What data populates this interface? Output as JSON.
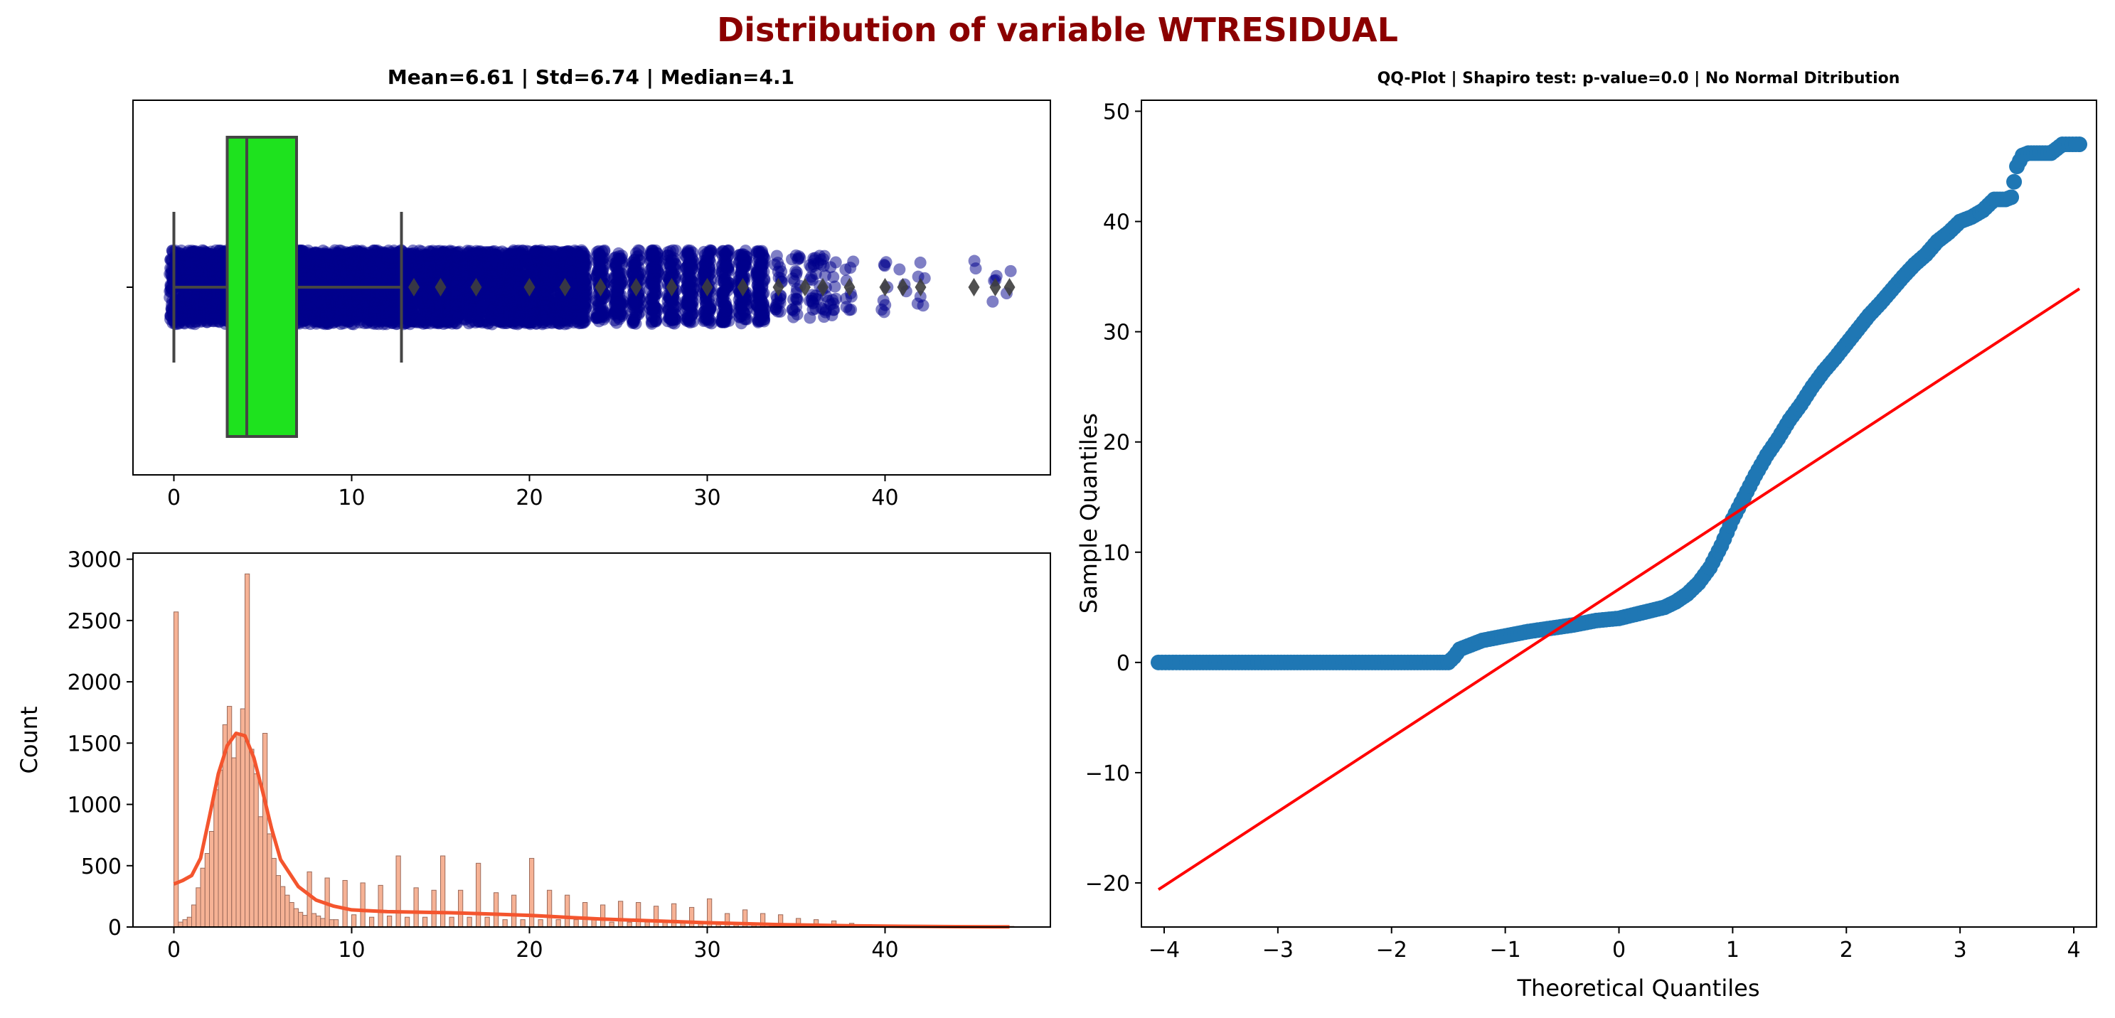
{
  "suptitle": "Distribution of variable WTRESIDUAL",
  "colors": {
    "suptitle": "#8b0000",
    "box_fill": "#1ee21e",
    "box_line": "#454545",
    "strip_points": "#00008b",
    "outliers": "#3d3d3d",
    "hist_fill": "#f4a582",
    "hist_edge": "#9b6a5a",
    "kde_line": "#f4552e",
    "qq_points": "#1f77b4",
    "qq_line": "#ff0000"
  },
  "boxplot": {
    "title": "Mean=6.61 | Std=6.74 | Median=4.1",
    "xlim": [
      -2.3,
      49.3
    ],
    "xticks": [
      0,
      10,
      20,
      30,
      40
    ],
    "stats": {
      "whisker_low": 0,
      "q1": 3.0,
      "median": 4.1,
      "q3": 6.9,
      "whisker_high": 12.8
    },
    "outliers": [
      13.5,
      15,
      17,
      20,
      22,
      24,
      26,
      28,
      30,
      32,
      34,
      35.5,
      36.5,
      38,
      40,
      41,
      42,
      45,
      46.2,
      47
    ],
    "strip_columns": [
      {
        "x": 0.0,
        "n": 100
      },
      {
        "x": 0.5,
        "n": 100
      },
      {
        "x": 1.0,
        "n": 100
      },
      {
        "x": 1.5,
        "n": 100
      },
      {
        "x": 2.0,
        "n": 100
      },
      {
        "x": 2.5,
        "n": 100
      },
      {
        "x": 3.0,
        "n": 100
      },
      {
        "x": 3.5,
        "n": 100
      },
      {
        "x": 4.0,
        "n": 100
      },
      {
        "x": 4.5,
        "n": 100
      },
      {
        "x": 5.0,
        "n": 100
      },
      {
        "x": 5.5,
        "n": 100
      },
      {
        "x": 6.0,
        "n": 100
      },
      {
        "x": 6.5,
        "n": 100
      },
      {
        "x": 7.0,
        "n": 100
      },
      {
        "x": 7.5,
        "n": 100
      },
      {
        "x": 8.0,
        "n": 100
      },
      {
        "x": 8.5,
        "n": 100
      },
      {
        "x": 9.0,
        "n": 100
      },
      {
        "x": 9.5,
        "n": 100
      },
      {
        "x": 10.0,
        "n": 100
      },
      {
        "x": 10.5,
        "n": 100
      },
      {
        "x": 11.0,
        "n": 100
      },
      {
        "x": 11.5,
        "n": 100
      },
      {
        "x": 12.0,
        "n": 100
      },
      {
        "x": 12.5,
        "n": 100
      },
      {
        "x": 13.0,
        "n": 100
      },
      {
        "x": 13.5,
        "n": 100
      },
      {
        "x": 14.0,
        "n": 100
      },
      {
        "x": 14.5,
        "n": 100
      },
      {
        "x": 15.0,
        "n": 100
      },
      {
        "x": 15.5,
        "n": 100
      },
      {
        "x": 16.0,
        "n": 100
      },
      {
        "x": 16.5,
        "n": 100
      },
      {
        "x": 17.0,
        "n": 100
      },
      {
        "x": 17.5,
        "n": 100
      },
      {
        "x": 18.0,
        "n": 100
      },
      {
        "x": 18.5,
        "n": 100
      },
      {
        "x": 19.0,
        "n": 100
      },
      {
        "x": 19.5,
        "n": 100
      },
      {
        "x": 20.0,
        "n": 100
      },
      {
        "x": 20.5,
        "n": 100
      },
      {
        "x": 21.0,
        "n": 100
      },
      {
        "x": 21.5,
        "n": 100
      },
      {
        "x": 22.0,
        "n": 100
      },
      {
        "x": 22.5,
        "n": 100
      },
      {
        "x": 23.0,
        "n": 100
      },
      {
        "x": 24.0,
        "n": 100
      },
      {
        "x": 25.0,
        "n": 100
      },
      {
        "x": 26.0,
        "n": 100
      },
      {
        "x": 27.0,
        "n": 100
      },
      {
        "x": 28.0,
        "n": 100
      },
      {
        "x": 29.0,
        "n": 100
      },
      {
        "x": 30.0,
        "n": 100
      },
      {
        "x": 31.0,
        "n": 100
      },
      {
        "x": 32.0,
        "n": 100
      },
      {
        "x": 33.0,
        "n": 100
      },
      {
        "x": 34.0,
        "n": 24
      },
      {
        "x": 35.0,
        "n": 24
      },
      {
        "x": 36.0,
        "n": 24
      },
      {
        "x": 36.5,
        "n": 16
      },
      {
        "x": 37.0,
        "n": 12
      },
      {
        "x": 38.0,
        "n": 10
      },
      {
        "x": 40.0,
        "n": 8
      },
      {
        "x": 41.0,
        "n": 3
      },
      {
        "x": 42.0,
        "n": 6
      },
      {
        "x": 45.0,
        "n": 2
      },
      {
        "x": 46.2,
        "n": 4
      },
      {
        "x": 47.0,
        "n": 2
      }
    ]
  },
  "histogram": {
    "ylabel": "Count",
    "xlim": [
      -2.3,
      49.3
    ],
    "ylim": [
      0,
      3050
    ],
    "xticks": [
      0,
      10,
      20,
      30,
      40
    ],
    "yticks": [
      0,
      500,
      1000,
      1500,
      2000,
      2500,
      3000
    ]
  },
  "qqplot": {
    "title": "QQ-Plot | Shapiro test: p-value=0.0 | No Normal Ditribution",
    "xlabel": "Theoretical Quantiles",
    "ylabel": "Sample Quantiles",
    "xlim": [
      -4.2,
      4.2
    ],
    "ylim": [
      -24,
      51
    ],
    "xticks": [
      -4,
      -3,
      -2,
      -1,
      0,
      1,
      2,
      3,
      4
    ],
    "xtick_labels": [
      "−4",
      "−3",
      "−2",
      "−1",
      "0",
      "1",
      "2",
      "3",
      "4"
    ],
    "yticks": [
      -20,
      -10,
      0,
      10,
      20,
      30,
      40,
      50
    ],
    "ytick_labels": [
      "−20",
      "−10",
      "0",
      "10",
      "20",
      "30",
      "40",
      "50"
    ],
    "reference_line": [
      [
        -4.05,
        -20.6
      ],
      [
        4.05,
        33.9
      ]
    ]
  },
  "chart_data": [
    {
      "type": "box",
      "title": "Mean=6.61 | Std=6.74 | Median=4.1",
      "stats": {
        "min": 0,
        "q1": 3.0,
        "median": 4.1,
        "q3": 6.9,
        "max_whisker": 12.8
      },
      "mean": 6.61,
      "std": 6.74,
      "xlim": [
        -2.3,
        49.3
      ]
    },
    {
      "type": "bar",
      "subtype": "histogram_with_kde",
      "ylabel": "Count",
      "bin_width": 0.25,
      "x": [
        0.0,
        0.25,
        0.5,
        0.75,
        1.0,
        1.25,
        1.5,
        1.75,
        2.0,
        2.25,
        2.5,
        2.75,
        3.0,
        3.25,
        3.5,
        3.75,
        4.0,
        4.25,
        4.5,
        4.75,
        5.0,
        5.25,
        5.5,
        5.75,
        6.0,
        6.25,
        6.5,
        6.75,
        7.0,
        7.25,
        7.5,
        7.75,
        8.0,
        8.25,
        8.5,
        8.75,
        9.0,
        9.5,
        10.0,
        10.5,
        11.0,
        11.5,
        12.0,
        12.5,
        13.0,
        13.5,
        14.0,
        14.5,
        15.0,
        15.5,
        16.0,
        16.5,
        17.0,
        17.5,
        18.0,
        18.5,
        19.0,
        19.5,
        20.0,
        20.5,
        21.0,
        21.5,
        22.0,
        22.5,
        23.0,
        23.5,
        24.0,
        24.5,
        25.0,
        25.5,
        26.0,
        26.5,
        27.0,
        27.5,
        28.0,
        28.5,
        29.0,
        29.5,
        30.0,
        30.5,
        31.0,
        31.5,
        32.0,
        32.5,
        33.0,
        33.5,
        34.0,
        34.5,
        35.0,
        35.5,
        36.0,
        36.5,
        37.0,
        38.0,
        39.0,
        40.0,
        41.0,
        42.0,
        43.0,
        44.0,
        45.0,
        46.0,
        47.0
      ],
      "values": [
        2570,
        40,
        60,
        80,
        180,
        320,
        480,
        600,
        780,
        1120,
        1280,
        1650,
        1800,
        1380,
        1570,
        1780,
        2880,
        1450,
        1250,
        900,
        1580,
        760,
        560,
        420,
        330,
        260,
        200,
        150,
        120,
        95,
        450,
        110,
        90,
        70,
        400,
        60,
        60,
        380,
        100,
        360,
        80,
        340,
        90,
        580,
        80,
        320,
        80,
        300,
        580,
        80,
        300,
        80,
        520,
        80,
        280,
        60,
        260,
        60,
        560,
        60,
        300,
        60,
        260,
        60,
        200,
        60,
        180,
        40,
        210,
        40,
        200,
        40,
        170,
        40,
        190,
        40,
        160,
        40,
        230,
        30,
        110,
        30,
        140,
        30,
        110,
        20,
        100,
        20,
        70,
        20,
        60,
        20,
        50,
        30,
        20,
        15,
        15,
        10,
        8,
        6,
        5,
        5,
        5
      ],
      "kde_x": [
        0,
        0.5,
        1,
        1.5,
        2,
        2.5,
        3,
        3.5,
        4,
        4.5,
        5,
        5.5,
        6,
        7,
        8,
        9,
        10,
        12,
        14,
        16,
        18,
        20,
        22,
        24,
        26,
        28,
        30,
        32,
        34,
        36,
        38,
        40,
        42,
        44,
        47
      ],
      "kde_y": [
        350,
        380,
        420,
        560,
        900,
        1250,
        1480,
        1580,
        1560,
        1380,
        1100,
        800,
        550,
        330,
        220,
        170,
        140,
        125,
        120,
        115,
        105,
        95,
        80,
        65,
        55,
        45,
        35,
        28,
        20,
        15,
        10,
        7,
        5,
        3,
        1
      ],
      "xlim": [
        -2.3,
        49.3
      ],
      "ylim": [
        0,
        3050
      ]
    },
    {
      "type": "scatter",
      "subtype": "qq_plot",
      "title": "QQ-Plot | Shapiro test: p-value=0.0 | No Normal Ditribution",
      "xlabel": "Theoretical Quantiles",
      "ylabel": "Sample Quantiles",
      "x": [
        -4.05,
        -3.8,
        -3.6,
        -3.4,
        -3.2,
        -3.0,
        -2.8,
        -2.6,
        -2.4,
        -2.2,
        -2.0,
        -1.8,
        -1.6,
        -1.5,
        -1.45,
        -1.4,
        -1.3,
        -1.2,
        -1.0,
        -0.8,
        -0.6,
        -0.4,
        -0.2,
        0.0,
        0.2,
        0.4,
        0.5,
        0.6,
        0.7,
        0.8,
        0.9,
        1.0,
        1.1,
        1.2,
        1.3,
        1.4,
        1.5,
        1.6,
        1.7,
        1.8,
        1.9,
        2.0,
        2.1,
        2.2,
        2.3,
        2.4,
        2.5,
        2.6,
        2.7,
        2.8,
        2.9,
        3.0,
        3.1,
        3.2,
        3.3,
        3.4,
        3.45,
        3.5,
        3.55,
        3.6,
        3.7,
        3.8,
        3.9,
        4.05
      ],
      "y": [
        0,
        0,
        0,
        0,
        0,
        0,
        0,
        0,
        0,
        0,
        0,
        0,
        0,
        0,
        0.5,
        1.2,
        1.6,
        2.0,
        2.4,
        2.8,
        3.1,
        3.4,
        3.8,
        4.0,
        4.5,
        5.0,
        5.5,
        6.2,
        7.2,
        8.6,
        10.6,
        13.0,
        15.0,
        17.0,
        18.8,
        20.3,
        22.0,
        23.4,
        25.0,
        26.4,
        27.6,
        28.9,
        30.2,
        31.5,
        32.6,
        33.8,
        35.0,
        36.1,
        37.0,
        38.2,
        39.0,
        40.0,
        40.4,
        41.0,
        42.0,
        42.0,
        42.2,
        45.0,
        46.0,
        46.2,
        46.2,
        46.2,
        47.0,
        47.0
      ],
      "reference_line": {
        "x": [
          -4.05,
          4.05
        ],
        "y": [
          -20.6,
          33.9
        ]
      },
      "xlim": [
        -4.2,
        4.2
      ],
      "ylim": [
        -24,
        51
      ]
    }
  ]
}
